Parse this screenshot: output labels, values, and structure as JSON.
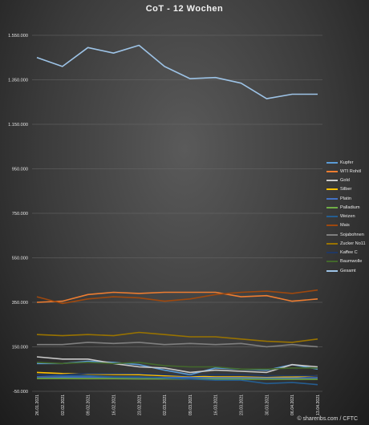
{
  "chart_data": {
    "type": "line",
    "title": "CoT - 12 Wochen",
    "xlabel": "",
    "ylabel": "",
    "ylim": [
      -50000,
      1550000
    ],
    "y_ticks": [
      -50000,
      150000,
      350000,
      550000,
      750000,
      950000,
      1150000,
      1350000,
      1550000
    ],
    "y_tick_labels": [
      "-50.000",
      "150.000",
      "350.000",
      "550.000",
      "750.000",
      "950.000",
      "1.150.000",
      "1.350.000",
      "1.550.000"
    ],
    "categories": [
      "26.01.2021",
      "02.02.2021",
      "09.02.2021",
      "16.02.2021",
      "23.02.2021",
      "02.03.2021",
      "09.03.2021",
      "16.03.2021",
      "23.03.2021",
      "30.03.2021",
      "06.04.2021",
      "13.04.2021"
    ],
    "grid": "horizontal",
    "legend_position": "right",
    "series": [
      {
        "name": "Kupfer",
        "color": "#5b9bd5",
        "values": [
          75000,
          75000,
          85000,
          80000,
          70000,
          45000,
          25000,
          55000,
          50000,
          45000,
          70000,
          50000
        ]
      },
      {
        "name": "WTI Rohöl",
        "color": "#ed7d31",
        "values": [
          350000,
          355000,
          385000,
          395000,
          390000,
          395000,
          395000,
          395000,
          375000,
          380000,
          355000,
          365000
        ]
      },
      {
        "name": "Gold",
        "color": "#c9c9c9",
        "values": [
          105000,
          95000,
          95000,
          75000,
          60000,
          55000,
          35000,
          45000,
          40000,
          35000,
          70000,
          60000
        ]
      },
      {
        "name": "Silber",
        "color": "#ffc000",
        "values": [
          35000,
          30000,
          28000,
          26000,
          25000,
          20000,
          18000,
          15000,
          15000,
          12000,
          15000,
          20000
        ]
      },
      {
        "name": "Platin",
        "color": "#4472c4",
        "values": [
          15000,
          14000,
          14000,
          14000,
          13000,
          12000,
          12000,
          11000,
          11000,
          10000,
          10000,
          11000
        ]
      },
      {
        "name": "Palladium",
        "color": "#70ad47",
        "values": [
          8000,
          8000,
          7000,
          7000,
          6000,
          6000,
          5000,
          5000,
          5000,
          4000,
          4000,
          4000
        ]
      },
      {
        "name": "Weizen",
        "color": "#255e91",
        "values": [
          25000,
          20000,
          20000,
          15000,
          15000,
          10000,
          5000,
          0,
          0,
          -15000,
          -10000,
          -20000
        ]
      },
      {
        "name": "Mais",
        "color": "#9e480e",
        "values": [
          375000,
          345000,
          365000,
          375000,
          370000,
          355000,
          365000,
          385000,
          395000,
          400000,
          390000,
          405000
        ]
      },
      {
        "name": "Sojabohnen",
        "color": "#7f7f7f",
        "values": [
          160000,
          160000,
          170000,
          165000,
          170000,
          160000,
          165000,
          160000,
          165000,
          150000,
          160000,
          150000
        ]
      },
      {
        "name": "Zucker No11",
        "color": "#997300",
        "values": [
          205000,
          200000,
          205000,
          200000,
          215000,
          205000,
          195000,
          195000,
          185000,
          175000,
          170000,
          185000
        ]
      },
      {
        "name": "Kaffee C",
        "color": "#203864",
        "values": [
          25000,
          25000,
          30000,
          30000,
          30000,
          25000,
          20000,
          25000,
          25000,
          20000,
          20000,
          20000
        ]
      },
      {
        "name": "Baumwolle",
        "color": "#43682b",
        "values": [
          80000,
          75000,
          80000,
          75000,
          80000,
          65000,
          60000,
          60000,
          50000,
          50000,
          55000,
          55000
        ]
      },
      {
        "name": "Gesamt",
        "color": "#9dc3e6",
        "values": [
          1450000,
          1410000,
          1495000,
          1470000,
          1505000,
          1410000,
          1355000,
          1360000,
          1335000,
          1265000,
          1285000,
          1285000
        ]
      }
    ]
  },
  "footer": {
    "credit": "© shareribs.com / CFTC"
  }
}
